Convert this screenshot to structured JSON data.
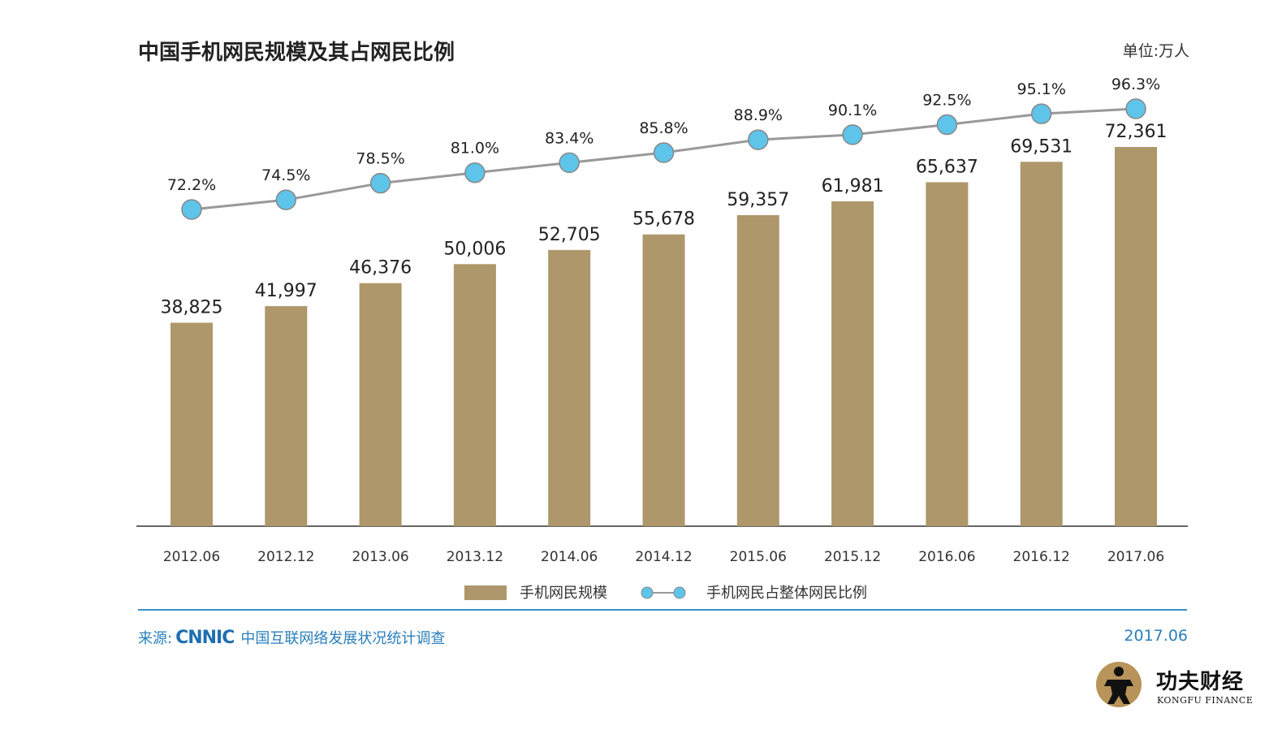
{
  "title": "中国手机网民规模及其占网民比例",
  "unit": "单位:万人",
  "source": {
    "label": "来源:",
    "org": "CNNIC",
    "text": "中国互联网络发展状况统计调查"
  },
  "date": "2017.06",
  "brand": {
    "cn": "功夫财经",
    "en": "KONGFU FINANCE"
  },
  "colors": {
    "bar": "#ae976b",
    "line": "#999999",
    "marker": "#5ec4ea",
    "marker_stroke": "#888888",
    "source": "#2a7fba"
  },
  "chart_data": {
    "type": "bar",
    "categories": [
      "2012.06",
      "2012.12",
      "2013.06",
      "2013.12",
      "2014.06",
      "2014.12",
      "2015.06",
      "2015.12",
      "2016.06",
      "2016.12",
      "2017.06"
    ],
    "series": [
      {
        "name": "手机网民规模",
        "type": "bar",
        "values": [
          38825,
          41997,
          46376,
          50006,
          52705,
          55678,
          59357,
          61981,
          65637,
          69531,
          72361
        ],
        "labels": [
          "38,825",
          "41,997",
          "46,376",
          "50,006",
          "52,705",
          "55,678",
          "59,357",
          "61,981",
          "65,637",
          "69,531",
          "72,361"
        ]
      },
      {
        "name": "手机网民占整体网民比例",
        "type": "line",
        "values": [
          72.2,
          74.5,
          78.5,
          81.0,
          83.4,
          85.8,
          88.9,
          90.1,
          92.5,
          95.1,
          96.3
        ],
        "labels": [
          "72.2%",
          "74.5%",
          "78.5%",
          "81.0%",
          "83.4%",
          "85.8%",
          "88.9%",
          "90.1%",
          "92.5%",
          "95.1%",
          "96.3%"
        ]
      }
    ],
    "legend_position": "bottom",
    "grid": false
  }
}
